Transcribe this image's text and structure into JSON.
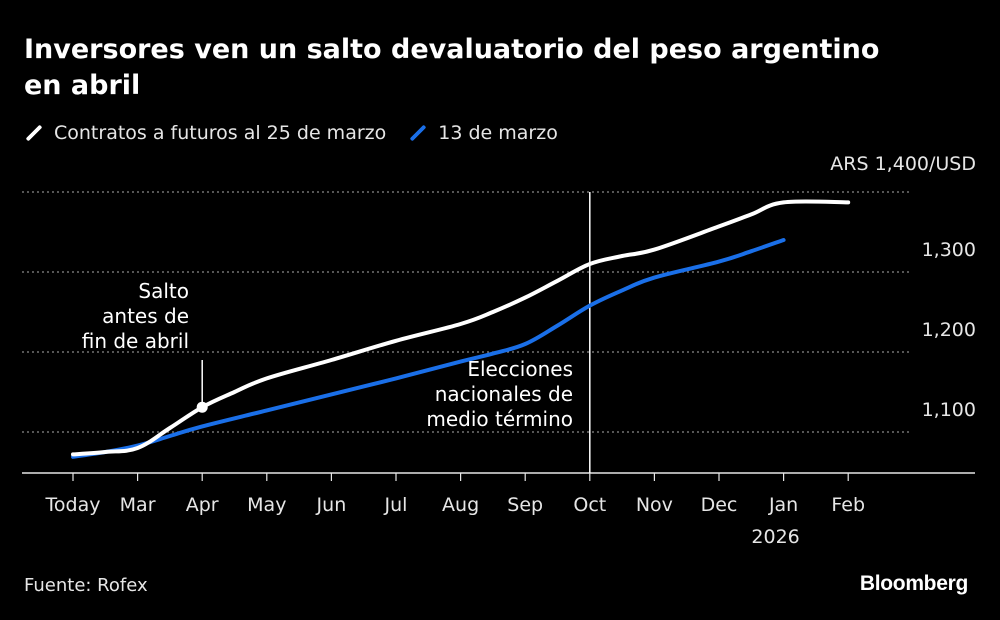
{
  "title": "Inversores ven un salto devaluatorio del peso argentino en abril",
  "source": "Fuente: Rofex",
  "logo": "Bloomberg",
  "chart_data": {
    "type": "line",
    "title": "Inversores ven un salto devaluatorio del peso argentino en abril",
    "unit_label": "ARS 1,400/USD",
    "categories": [
      "Today",
      "Mar",
      "Apr",
      "May",
      "Jun",
      "Jul",
      "Aug",
      "Sep",
      "Oct",
      "Nov",
      "Dec",
      "Jan",
      "Feb"
    ],
    "year_label": "2026",
    "ylim": [
      1040,
      1400
    ],
    "yticks": [
      {
        "value": 1100,
        "label": "1,100"
      },
      {
        "value": 1200,
        "label": "1,200"
      },
      {
        "value": 1300,
        "label": "1,300"
      },
      {
        "value": 1400,
        "label": "ARS 1,400/USD"
      }
    ],
    "grid": true,
    "legend_position": "top-left",
    "series": [
      {
        "name": "Contratos a futuros al 25 de marzo",
        "color": "#ffffff",
        "x": [
          0,
          0.5,
          1,
          1.5,
          2,
          2.5,
          3,
          4,
          5,
          6,
          6.5,
          7,
          7.5,
          8,
          8.5,
          9,
          10,
          10.5,
          11,
          12
        ],
        "values": [
          1072,
          1075,
          1080,
          1105,
          1131,
          1150,
          1167,
          1190,
          1214,
          1235,
          1250,
          1268,
          1289,
          1310,
          1320,
          1328,
          1357,
          1372,
          1387,
          1387
        ]
      },
      {
        "name": "13 de marzo",
        "color": "#1a6fe8",
        "x": [
          0,
          0.5,
          1,
          1.5,
          2,
          3,
          4,
          5,
          6,
          6.5,
          7,
          7.5,
          8,
          8.5,
          9,
          10,
          10.5,
          11
        ],
        "values": [
          1069,
          1075,
          1083,
          1095,
          1107,
          1127,
          1147,
          1167,
          1188,
          1198,
          1210,
          1233,
          1258,
          1277,
          1293,
          1313,
          1326,
          1340
        ]
      }
    ],
    "annotations": [
      {
        "text_lines": [
          "Salto",
          "antes de",
          "fin de abril"
        ],
        "x": 2,
        "y": 1131
      },
      {
        "text_lines": [
          "Elecciones",
          "nacionales de",
          "medio término"
        ],
        "x": 8
      }
    ]
  }
}
